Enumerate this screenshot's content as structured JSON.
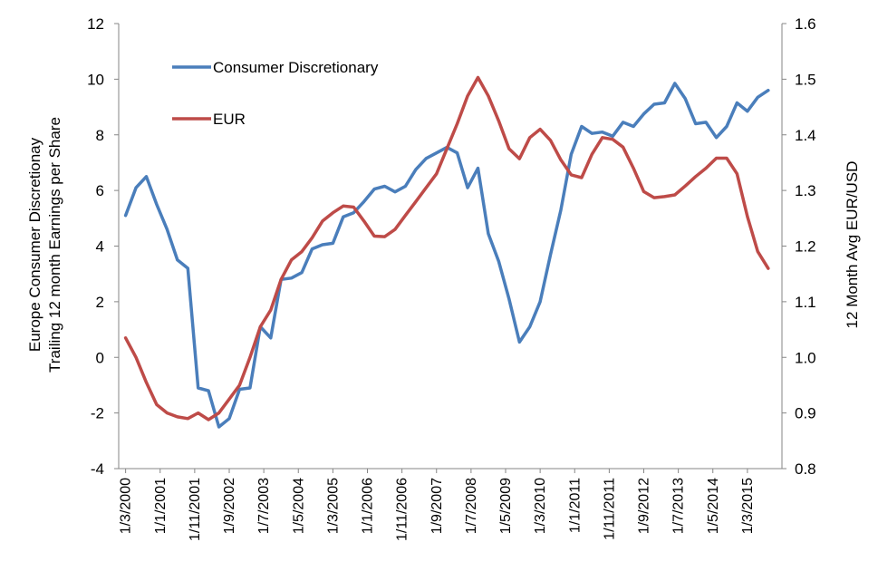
{
  "chart_data": {
    "type": "line",
    "title": "",
    "xlabel": "",
    "ylabel_left_lines": [
      "Europe Consumer Discretionay",
      "Trailing 12 month Earnings per Share"
    ],
    "ylabel_right": "12 Month Avg EUR/USD",
    "y_left": {
      "min": -4,
      "max": 12,
      "ticks": [
        "-4",
        "-2",
        "0",
        "2",
        "4",
        "6",
        "8",
        "10",
        "12"
      ]
    },
    "y_right": {
      "min": 0.8,
      "max": 1.6,
      "ticks": [
        "0.8",
        "0.9",
        "1.0",
        "1.1",
        "1.2",
        "1.3",
        "1.4",
        "1.5",
        "1.6"
      ]
    },
    "x_start": "2000-01",
    "x_end": "2016-01",
    "x_ticks": [
      {
        "label": "1/3/2000",
        "date": "2000-03"
      },
      {
        "label": "1/1/2001",
        "date": "2001-01"
      },
      {
        "label": "1/11/2001",
        "date": "2001-11"
      },
      {
        "label": "1/9/2002",
        "date": "2002-09"
      },
      {
        "label": "1/7/2003",
        "date": "2003-07"
      },
      {
        "label": "1/5/2004",
        "date": "2004-05"
      },
      {
        "label": "1/3/2005",
        "date": "2005-03"
      },
      {
        "label": "1/1/2006",
        "date": "2006-01"
      },
      {
        "label": "1/11/2006",
        "date": "2006-11"
      },
      {
        "label": "1/9/2007",
        "date": "2007-09"
      },
      {
        "label": "1/7/2008",
        "date": "2008-07"
      },
      {
        "label": "1/5/2009",
        "date": "2009-05"
      },
      {
        "label": "1/3/2010",
        "date": "2010-03"
      },
      {
        "label": "1/1/2011",
        "date": "2011-01"
      },
      {
        "label": "1/11/2011",
        "date": "2011-11"
      },
      {
        "label": "1/9/2012",
        "date": "2012-09"
      },
      {
        "label": "1/7/2013",
        "date": "2013-07"
      },
      {
        "label": "1/5/2014",
        "date": "2014-05"
      },
      {
        "label": "1/3/2015",
        "date": "2015-03"
      }
    ],
    "legend_position": "top-left",
    "grid": false,
    "series": [
      {
        "name": "Consumer Discretionary",
        "axis": "left",
        "color": "#4a7ebb",
        "points": [
          [
            "2000-03",
            5.1
          ],
          [
            "2000-06",
            6.1
          ],
          [
            "2000-09",
            6.5
          ],
          [
            "2000-12",
            5.5
          ],
          [
            "2001-03",
            4.6
          ],
          [
            "2001-06",
            3.5
          ],
          [
            "2001-09",
            3.2
          ],
          [
            "2001-12",
            -1.1
          ],
          [
            "2002-03",
            -1.2
          ],
          [
            "2002-06",
            -2.5
          ],
          [
            "2002-09",
            -2.2
          ],
          [
            "2002-12",
            -1.15
          ],
          [
            "2003-03",
            -1.1
          ],
          [
            "2003-06",
            1.1
          ],
          [
            "2003-09",
            0.7
          ],
          [
            "2003-12",
            2.8
          ],
          [
            "2004-03",
            2.85
          ],
          [
            "2004-06",
            3.05
          ],
          [
            "2004-09",
            3.9
          ],
          [
            "2004-12",
            4.05
          ],
          [
            "2005-03",
            4.1
          ],
          [
            "2005-06",
            5.05
          ],
          [
            "2005-09",
            5.2
          ],
          [
            "2005-12",
            5.6
          ],
          [
            "2006-03",
            6.05
          ],
          [
            "2006-06",
            6.15
          ],
          [
            "2006-09",
            5.95
          ],
          [
            "2006-12",
            6.15
          ],
          [
            "2007-03",
            6.75
          ],
          [
            "2007-06",
            7.15
          ],
          [
            "2007-09",
            7.35
          ],
          [
            "2007-12",
            7.55
          ],
          [
            "2008-03",
            7.35
          ],
          [
            "2008-06",
            6.1
          ],
          [
            "2008-09",
            6.8
          ],
          [
            "2008-12",
            4.45
          ],
          [
            "2009-03",
            3.45
          ],
          [
            "2009-06",
            2.1
          ],
          [
            "2009-09",
            0.55
          ],
          [
            "2009-12",
            1.1
          ],
          [
            "2010-03",
            2.0
          ],
          [
            "2010-06",
            3.7
          ],
          [
            "2010-09",
            5.3
          ],
          [
            "2010-12",
            7.3
          ],
          [
            "2011-03",
            8.3
          ],
          [
            "2011-06",
            8.05
          ],
          [
            "2011-09",
            8.1
          ],
          [
            "2011-12",
            7.95
          ],
          [
            "2012-03",
            8.45
          ],
          [
            "2012-06",
            8.3
          ],
          [
            "2012-09",
            8.75
          ],
          [
            "2012-12",
            9.1
          ],
          [
            "2013-03",
            9.15
          ],
          [
            "2013-06",
            9.85
          ],
          [
            "2013-09",
            9.3
          ],
          [
            "2013-12",
            8.4
          ],
          [
            "2014-03",
            8.45
          ],
          [
            "2014-06",
            7.9
          ],
          [
            "2014-09",
            8.3
          ],
          [
            "2014-12",
            9.15
          ],
          [
            "2015-03",
            8.85
          ],
          [
            "2015-06",
            9.35
          ],
          [
            "2015-09",
            9.6
          ]
        ]
      },
      {
        "name": "EUR",
        "axis": "right",
        "color": "#be4b48",
        "points": [
          [
            "2000-03",
            1.035
          ],
          [
            "2000-06",
            1.0
          ],
          [
            "2000-09",
            0.955
          ],
          [
            "2000-12",
            0.915
          ],
          [
            "2001-03",
            0.9
          ],
          [
            "2001-06",
            0.893
          ],
          [
            "2001-09",
            0.89
          ],
          [
            "2001-12",
            0.9
          ],
          [
            "2002-03",
            0.888
          ],
          [
            "2002-06",
            0.9
          ],
          [
            "2002-09",
            0.925
          ],
          [
            "2002-12",
            0.95
          ],
          [
            "2003-03",
            1.0
          ],
          [
            "2003-06",
            1.055
          ],
          [
            "2003-09",
            1.085
          ],
          [
            "2003-12",
            1.14
          ],
          [
            "2004-03",
            1.175
          ],
          [
            "2004-06",
            1.19
          ],
          [
            "2004-09",
            1.215
          ],
          [
            "2004-12",
            1.245
          ],
          [
            "2005-03",
            1.26
          ],
          [
            "2005-06",
            1.272
          ],
          [
            "2005-09",
            1.27
          ],
          [
            "2005-12",
            1.245
          ],
          [
            "2006-03",
            1.218
          ],
          [
            "2006-06",
            1.217
          ],
          [
            "2006-09",
            1.23
          ],
          [
            "2006-12",
            1.255
          ],
          [
            "2007-03",
            1.28
          ],
          [
            "2007-06",
            1.305
          ],
          [
            "2007-09",
            1.33
          ],
          [
            "2007-12",
            1.375
          ],
          [
            "2008-03",
            1.42
          ],
          [
            "2008-06",
            1.47
          ],
          [
            "2008-09",
            1.503
          ],
          [
            "2008-12",
            1.47
          ],
          [
            "2009-03",
            1.425
          ],
          [
            "2009-06",
            1.375
          ],
          [
            "2009-09",
            1.357
          ],
          [
            "2009-12",
            1.395
          ],
          [
            "2010-03",
            1.41
          ],
          [
            "2010-06",
            1.39
          ],
          [
            "2010-09",
            1.355
          ],
          [
            "2010-12",
            1.328
          ],
          [
            "2011-03",
            1.323
          ],
          [
            "2011-06",
            1.365
          ],
          [
            "2011-09",
            1.395
          ],
          [
            "2011-12",
            1.392
          ],
          [
            "2012-03",
            1.378
          ],
          [
            "2012-06",
            1.34
          ],
          [
            "2012-09",
            1.298
          ],
          [
            "2012-12",
            1.287
          ],
          [
            "2013-03",
            1.289
          ],
          [
            "2013-06",
            1.292
          ],
          [
            "2013-09",
            1.308
          ],
          [
            "2013-12",
            1.325
          ],
          [
            "2014-03",
            1.34
          ],
          [
            "2014-06",
            1.358
          ],
          [
            "2014-09",
            1.358
          ],
          [
            "2014-12",
            1.33
          ],
          [
            "2015-03",
            1.253
          ],
          [
            "2015-06",
            1.19
          ],
          [
            "2015-09",
            1.16
          ]
        ]
      }
    ]
  }
}
